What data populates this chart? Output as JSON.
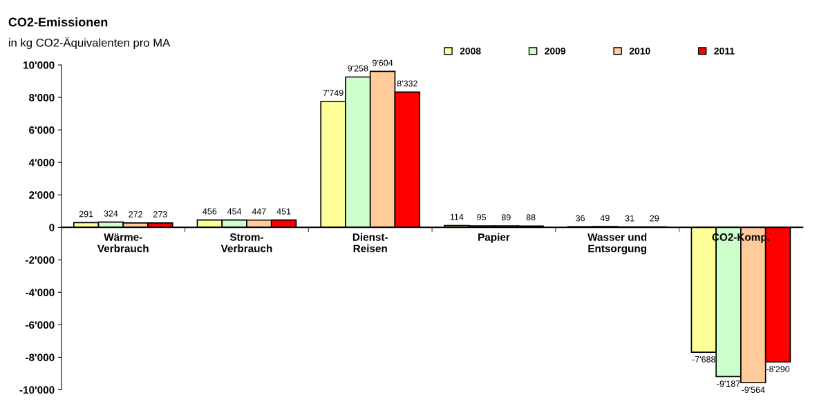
{
  "chart_data": {
    "type": "bar",
    "title": "CO2-Emissionen",
    "subtitle": "in kg CO2-Äquivalenten pro MA",
    "categories": [
      "Wärme-\nVerbrauch",
      "Strom-\nVerbrauch",
      "Dienst-\nReisen",
      "Papier",
      "Wasser und\nEntsorgung",
      "CO2-Komp."
    ],
    "series": [
      {
        "name": "2008",
        "color": "#ffff99",
        "values": [
          291,
          456,
          7749,
          114,
          36,
          -7688
        ],
        "value_labels": [
          "291",
          "456",
          "7'749",
          "114",
          "36",
          "-7'688"
        ]
      },
      {
        "name": "2009",
        "color": "#ccffcc",
        "values": [
          324,
          454,
          9258,
          95,
          49,
          -9187
        ],
        "value_labels": [
          "324",
          "454",
          "9'258",
          "95",
          "49",
          "-9'187"
        ]
      },
      {
        "name": "2010",
        "color": "#ffcc99",
        "values": [
          272,
          447,
          9604,
          89,
          31,
          -9564
        ],
        "value_labels": [
          "272",
          "447",
          "9'604",
          "89",
          "31",
          "-9'564"
        ]
      },
      {
        "name": "2011",
        "color": "#ff0000",
        "values": [
          273,
          451,
          8332,
          88,
          29,
          -8290
        ],
        "value_labels": [
          "273",
          "451",
          "8'332",
          "88",
          "29",
          "-8'290"
        ]
      }
    ],
    "ylim": [
      -10000,
      10000
    ],
    "yticks": [
      {
        "value": -10000,
        "label": "-10'000"
      },
      {
        "value": -8000,
        "label": "-8'000"
      },
      {
        "value": -6000,
        "label": "-6'000"
      },
      {
        "value": -4000,
        "label": "-4'000"
      },
      {
        "value": -2000,
        "label": "-2'000"
      },
      0,
      {
        "value": 2000,
        "label": "2'000"
      },
      {
        "value": 4000,
        "label": "4'000"
      },
      {
        "value": 6000,
        "label": "6'000"
      },
      {
        "value": 8000,
        "label": "8'000"
      },
      {
        "value": 10000,
        "label": "10'000"
      }
    ],
    "grid": false,
    "legend": "top right"
  }
}
